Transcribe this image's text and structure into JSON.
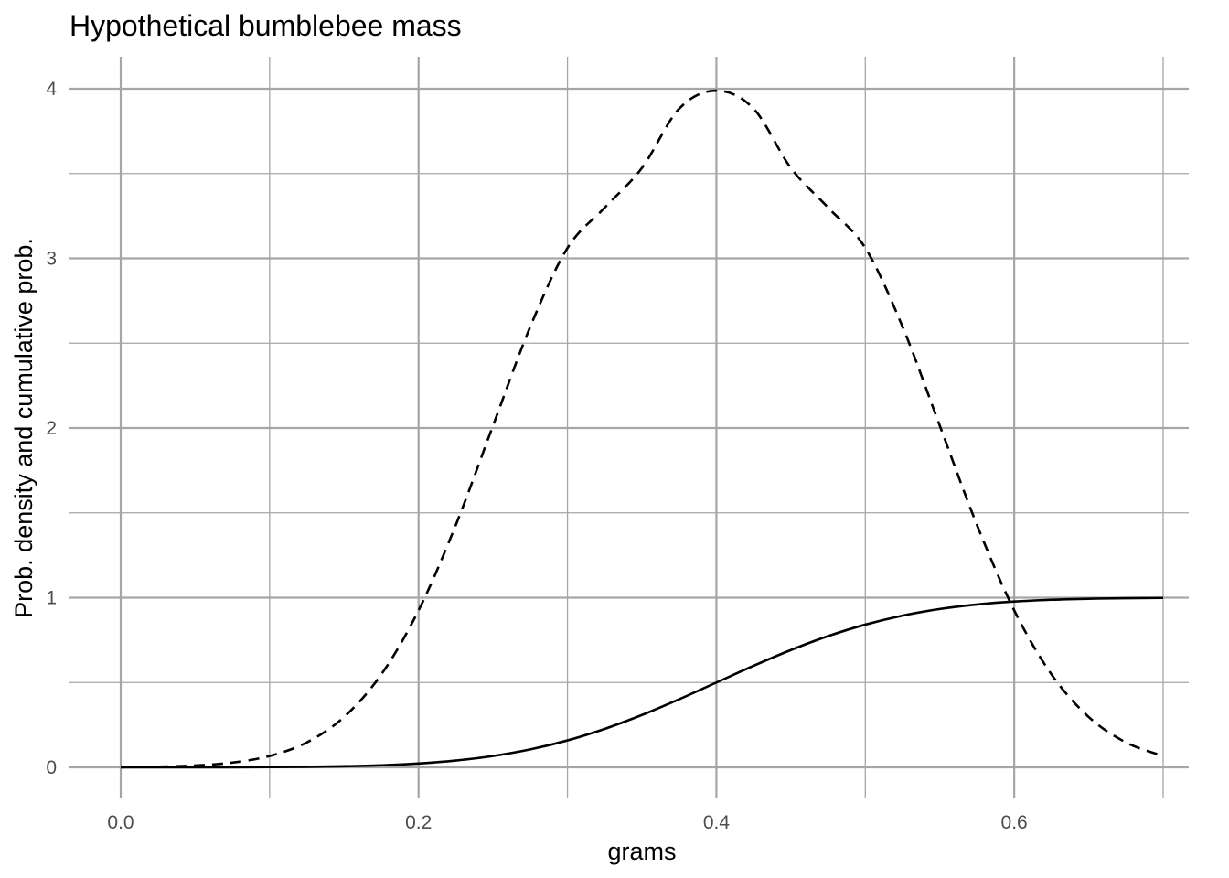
{
  "chart_data": {
    "type": "line",
    "title": "Hypothetical bumblebee mass",
    "xlabel": "grams",
    "ylabel": "Prob. density and cumulative prob.",
    "xlim": [
      0,
      0.7
    ],
    "ylim": [
      0,
      4
    ],
    "x_ticks": [
      {
        "value": 0.0,
        "label": "0.0"
      },
      {
        "value": 0.2,
        "label": "0.2"
      },
      {
        "value": 0.4,
        "label": "0.4"
      },
      {
        "value": 0.6,
        "label": "0.6"
      }
    ],
    "x_minor_ticks": [
      0.1,
      0.3,
      0.5,
      0.7
    ],
    "y_ticks": [
      {
        "value": 0,
        "label": "0"
      },
      {
        "value": 1,
        "label": "1"
      },
      {
        "value": 2,
        "label": "2"
      },
      {
        "value": 3,
        "label": "3"
      },
      {
        "value": 4,
        "label": "4"
      }
    ],
    "y_minor_ticks": [
      0.5,
      1.5,
      2.5,
      3.5
    ],
    "grid": true,
    "legend": "none",
    "x": [
      0.0,
      0.025,
      0.05,
      0.075,
      0.1,
      0.125,
      0.15,
      0.175,
      0.2,
      0.225,
      0.25,
      0.275,
      0.3,
      0.325,
      0.35,
      0.375,
      0.4,
      0.425,
      0.45,
      0.475,
      0.5,
      0.525,
      0.55,
      0.575,
      0.6,
      0.625,
      0.65,
      0.675,
      0.7
    ],
    "series": [
      {
        "style": "dashed",
        "color": "#000000",
        "values": [
          0.001,
          0.004,
          0.011,
          0.028,
          0.067,
          0.147,
          0.297,
          0.548,
          0.925,
          1.428,
          2.014,
          2.597,
          3.061,
          3.299,
          3.533,
          3.882,
          3.989,
          3.882,
          3.533,
          3.299,
          3.061,
          2.597,
          2.014,
          1.428,
          0.925,
          0.548,
          0.297,
          0.147,
          0.067
        ]
      },
      {
        "style": "solid",
        "color": "#000000",
        "values": [
          0.0,
          0.0001,
          0.0002,
          0.0006,
          0.0013,
          0.003,
          0.0062,
          0.0122,
          0.0228,
          0.0401,
          0.0668,
          0.1056,
          0.1587,
          0.2266,
          0.3085,
          0.4013,
          0.5,
          0.5987,
          0.6915,
          0.7734,
          0.8413,
          0.8944,
          0.9332,
          0.9599,
          0.9772,
          0.9878,
          0.9938,
          0.997,
          0.9987
        ]
      }
    ]
  }
}
